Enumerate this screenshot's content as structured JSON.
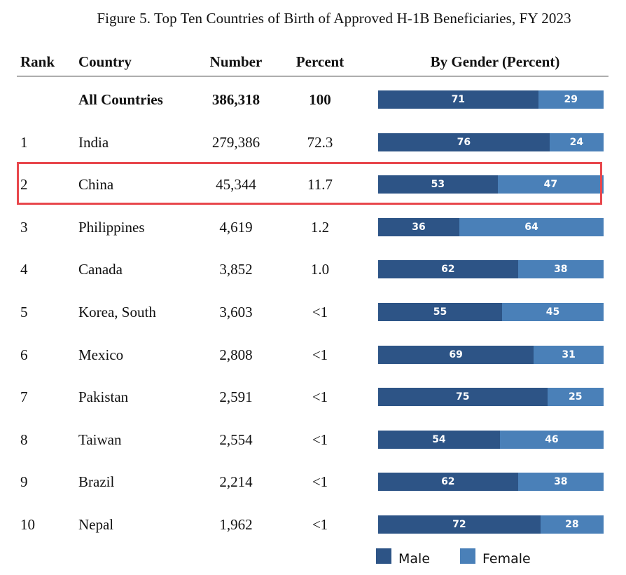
{
  "title": "Figure 5. Top Ten Countries of Birth of Approved H-1B Beneficiaries, FY 2023",
  "headers": {
    "rank": "Rank",
    "country": "Country",
    "number": "Number",
    "percent": "Percent",
    "gender": "By Gender (Percent)"
  },
  "colors": {
    "male": "#2d5486",
    "female": "#4a80b8",
    "highlight": "#e8474c"
  },
  "legend": {
    "male": "Male",
    "female": "Female"
  },
  "highlighted_rank": "2",
  "chart_data": {
    "type": "bar",
    "stacked": true,
    "orientation": "horizontal",
    "title": "Figure 5. Top Ten Countries of Birth of Approved H-1B Beneficiaries, FY 2023",
    "categories": [
      "All Countries",
      "India",
      "China",
      "Philippines",
      "Canada",
      "Korea, South",
      "Mexico",
      "Pakistan",
      "Taiwan",
      "Brazil",
      "Nepal"
    ],
    "series": [
      {
        "name": "Male",
        "values": [
          71,
          76,
          53,
          36,
          62,
          55,
          69,
          75,
          54,
          62,
          72
        ]
      },
      {
        "name": "Female",
        "values": [
          29,
          24,
          47,
          64,
          38,
          45,
          31,
          25,
          46,
          38,
          28
        ]
      }
    ],
    "xlim": [
      0,
      100
    ],
    "legend_position": "bottom",
    "rows": [
      {
        "rank": "",
        "country": "All Countries",
        "number": "386,318",
        "percent": "100",
        "male": 71,
        "female": 29,
        "bold": true
      },
      {
        "rank": "1",
        "country": "India",
        "number": "279,386",
        "percent": "72.3",
        "male": 76,
        "female": 24
      },
      {
        "rank": "2",
        "country": "China",
        "number": "45,344",
        "percent": "11.7",
        "male": 53,
        "female": 47
      },
      {
        "rank": "3",
        "country": "Philippines",
        "number": "4,619",
        "percent": "1.2",
        "male": 36,
        "female": 64
      },
      {
        "rank": "4",
        "country": "Canada",
        "number": "3,852",
        "percent": "1.0",
        "male": 62,
        "female": 38
      },
      {
        "rank": "5",
        "country": "Korea, South",
        "number": "3,603",
        "percent": "<1",
        "male": 55,
        "female": 45
      },
      {
        "rank": "6",
        "country": "Mexico",
        "number": "2,808",
        "percent": "<1",
        "male": 69,
        "female": 31
      },
      {
        "rank": "7",
        "country": "Pakistan",
        "number": "2,591",
        "percent": "<1",
        "male": 75,
        "female": 25
      },
      {
        "rank": "8",
        "country": "Taiwan",
        "number": "2,554",
        "percent": "<1",
        "male": 54,
        "female": 46
      },
      {
        "rank": "9",
        "country": "Brazil",
        "number": "2,214",
        "percent": "<1",
        "male": 62,
        "female": 38
      },
      {
        "rank": "10",
        "country": "Nepal",
        "number": "1,962",
        "percent": "<1",
        "male": 72,
        "female": 28
      }
    ]
  }
}
